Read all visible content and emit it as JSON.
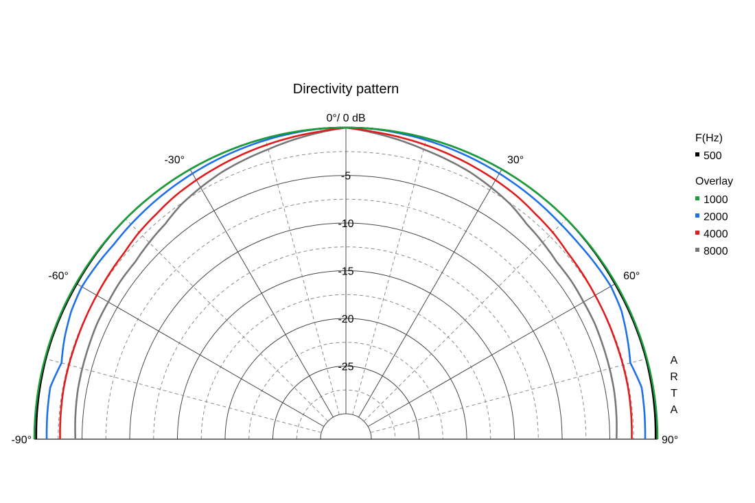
{
  "chart_data": {
    "type": "polar",
    "title": "Directivity pattern",
    "top_label": "0°/ 0 dB",
    "angle_range": [
      -90,
      90
    ],
    "angle_ticks": [
      -90,
      -60,
      -30,
      30,
      60,
      90
    ],
    "angle_tick_labels": [
      "-90°",
      "-60°",
      "-30°",
      "30°",
      "60°",
      "90°"
    ],
    "radial_range_db": [
      -30,
      0
    ],
    "radial_ticks": [
      -5,
      -10,
      -15,
      -20,
      -25
    ],
    "radial_tick_labels": [
      "-5",
      "-10",
      "-15",
      "-20",
      "-25"
    ],
    "grid": true,
    "legend": {
      "placement": "right",
      "header": "F(Hz)",
      "overlay_header": "Overlay",
      "primary": [
        {
          "label": "500",
          "color": "#000000"
        }
      ],
      "overlay": [
        {
          "label": "1000",
          "color": "#1a9e3c"
        },
        {
          "label": "2000",
          "color": "#1e6fe8"
        },
        {
          "label": "4000",
          "color": "#e01b1b"
        },
        {
          "label": "8000",
          "color": "#777777"
        }
      ]
    },
    "watermark": [
      "A",
      "R",
      "T",
      "A"
    ],
    "series": [
      {
        "name": "500",
        "color": "#000000",
        "angles": [
          -90,
          -75,
          -60,
          -45,
          -30,
          -15,
          0,
          15,
          30,
          45,
          60,
          75,
          90
        ],
        "values_db": [
          -0.2,
          -0.1,
          -0.1,
          0,
          0,
          0,
          0,
          0,
          0,
          0,
          -0.1,
          -0.1,
          -0.2
        ]
      },
      {
        "name": "1000",
        "color": "#1a9e3c",
        "angles": [
          -90,
          -75,
          -60,
          -45,
          -30,
          -15,
          0,
          15,
          30,
          45,
          60,
          75,
          90
        ],
        "values_db": [
          0,
          0,
          0,
          0,
          0,
          0,
          0,
          0,
          0,
          0,
          0,
          0,
          0
        ]
      },
      {
        "name": "2000",
        "color": "#1e6fe8",
        "angles": [
          -90,
          -80,
          -75,
          -70,
          -65,
          -60,
          -55,
          -50,
          -45,
          -40,
          -35,
          -30,
          -25,
          -20,
          -15,
          -10,
          -5,
          0,
          5,
          10,
          15,
          20,
          25,
          30,
          35,
          40,
          45,
          50,
          55,
          60,
          65,
          70,
          75,
          80,
          90
        ],
        "values_db": [
          -1.3,
          -1.2,
          -1.8,
          -1.3,
          -0.9,
          -0.7,
          -0.8,
          -0.9,
          -0.8,
          -0.7,
          -0.6,
          -0.5,
          -0.4,
          -0.3,
          -0.2,
          -0.1,
          0,
          0,
          0,
          -0.1,
          -0.2,
          -0.3,
          -0.4,
          -0.5,
          -0.6,
          -0.7,
          -0.8,
          -0.8,
          -0.7,
          -0.6,
          -0.8,
          -1.3,
          -1.8,
          -1.2,
          -1.3
        ]
      },
      {
        "name": "4000",
        "color": "#e01b1b",
        "angles": [
          -90,
          -80,
          -70,
          -60,
          -55,
          -50,
          -45,
          -40,
          -35,
          -30,
          -25,
          -20,
          -15,
          -10,
          -5,
          0,
          5,
          10,
          15,
          20,
          25,
          30,
          35,
          40,
          45,
          50,
          55,
          60,
          70,
          80,
          90
        ],
        "values_db": [
          -2.7,
          -2.6,
          -2.6,
          -2.5,
          -2.4,
          -2.3,
          -2.0,
          -1.8,
          -1.5,
          -1.3,
          -1.1,
          -0.9,
          -0.7,
          -0.5,
          -0.3,
          0,
          -0.3,
          -0.5,
          -0.7,
          -0.9,
          -1.1,
          -1.3,
          -1.5,
          -1.8,
          -2.0,
          -2.3,
          -2.4,
          -2.5,
          -2.6,
          -2.6,
          -2.7
        ]
      },
      {
        "name": "8000",
        "color": "#777777",
        "angles": [
          -90,
          -80,
          -70,
          -65,
          -60,
          -55,
          -50,
          -45,
          -40,
          -35,
          -30,
          -25,
          -20,
          -15,
          -10,
          -5,
          0,
          5,
          10,
          15,
          20,
          25,
          30,
          35,
          40,
          45,
          50,
          55,
          60,
          65,
          70,
          80,
          90
        ],
        "values_db": [
          -4.3,
          -4.1,
          -4.0,
          -3.9,
          -3.9,
          -3.8,
          -3.8,
          -3.5,
          -3.2,
          -2.6,
          -2.2,
          -1.8,
          -1.5,
          -1.2,
          -0.8,
          -0.4,
          0,
          -0.4,
          -0.8,
          -1.2,
          -1.5,
          -1.8,
          -2.2,
          -2.6,
          -3.2,
          -3.5,
          -3.8,
          -3.8,
          -3.9,
          -3.9,
          -4.0,
          -4.1,
          -4.3
        ]
      }
    ]
  }
}
